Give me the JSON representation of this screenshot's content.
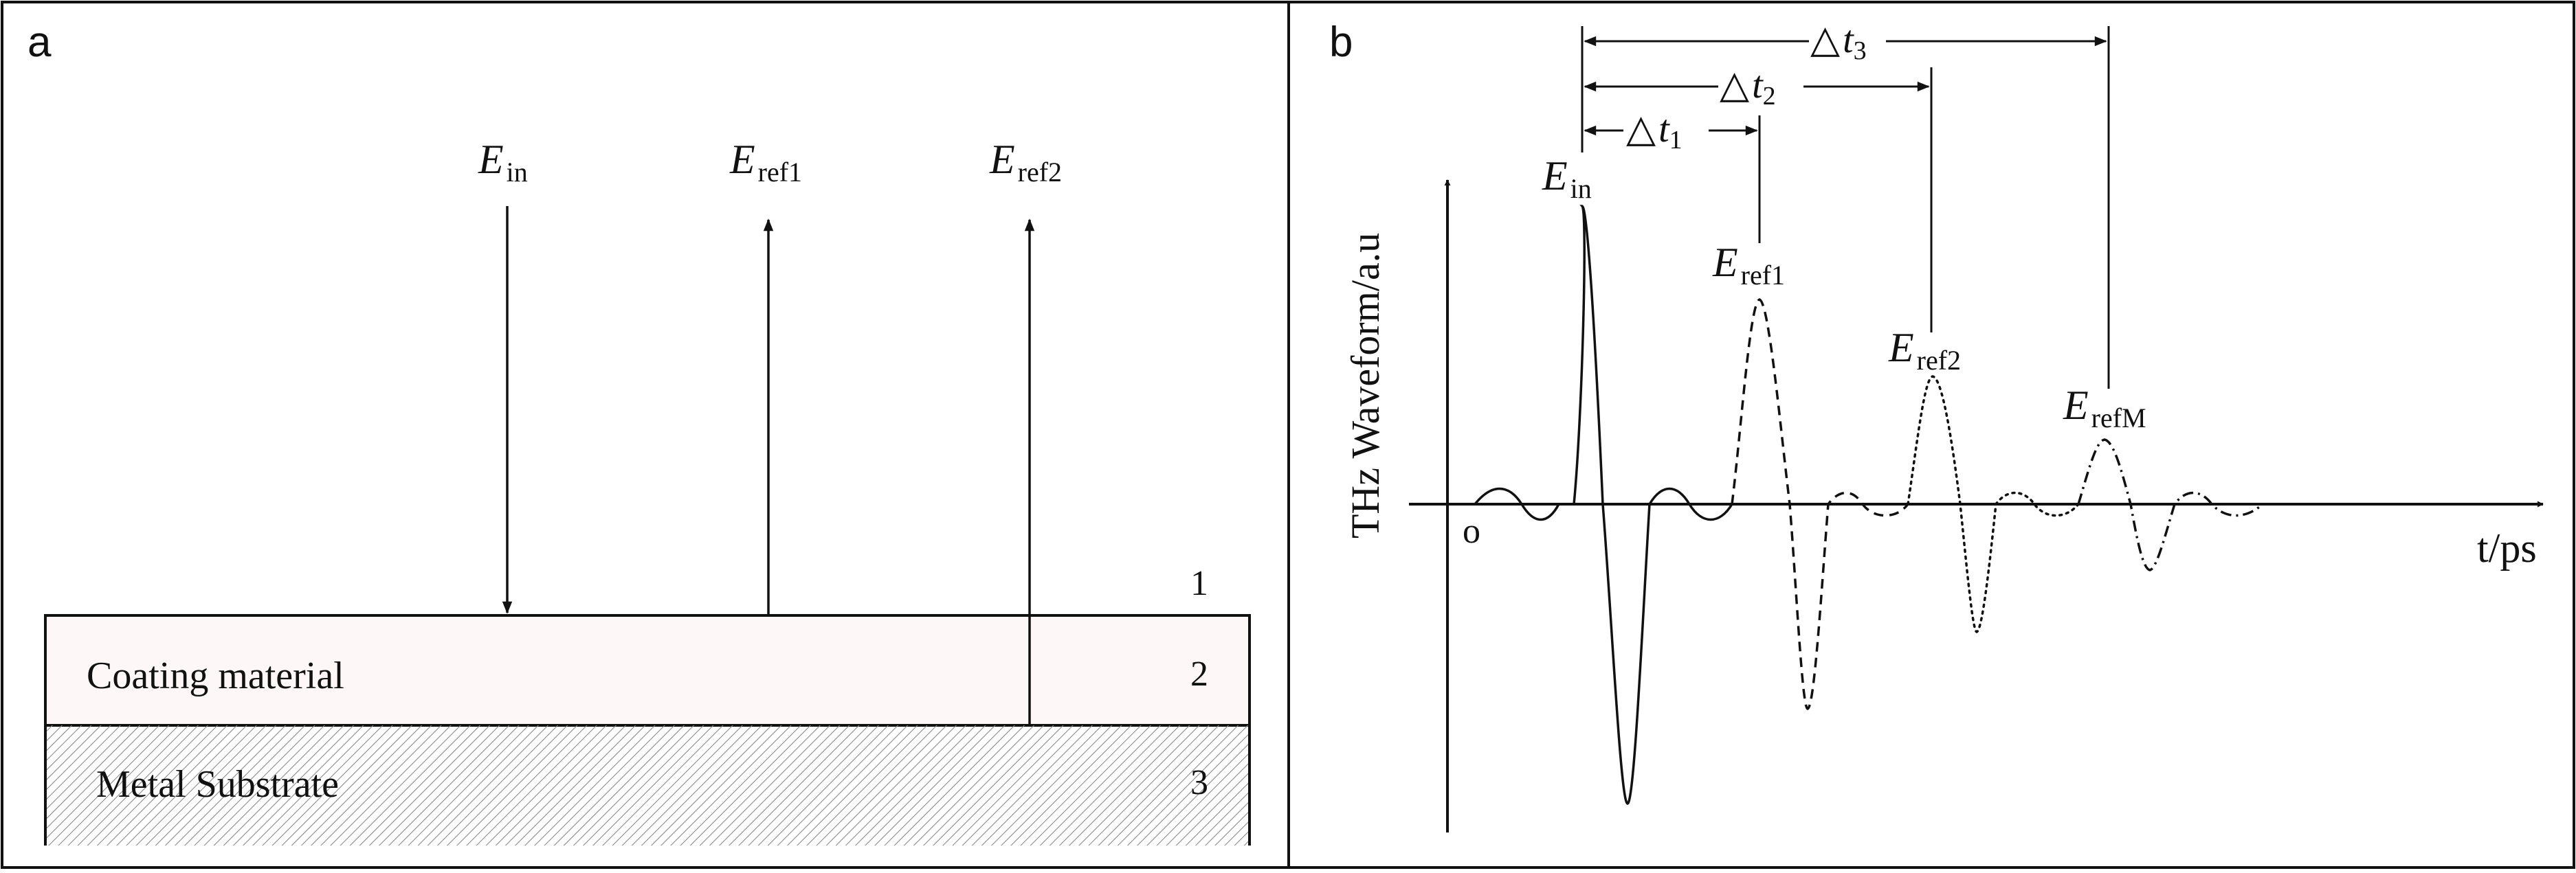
{
  "panel_a": {
    "letter": "a",
    "wave_labels": {
      "incident": {
        "base": "E",
        "sub": "in"
      },
      "reflected_1": {
        "base": "E",
        "sub": "ref1"
      },
      "reflected_2": {
        "base": "E",
        "sub": "ref2"
      }
    },
    "layers": {
      "air": {
        "number": "1"
      },
      "coating": {
        "label": "Coating material",
        "number": "2",
        "fill": "#fdf7f8"
      },
      "substrate": {
        "label": "Metal Substrate",
        "number": "3"
      }
    }
  },
  "panel_b": {
    "letter": "b",
    "y_axis_label": "THz Waveform/a.u",
    "x_axis_label": "t/ps",
    "origin_label": "o",
    "pulses": [
      {
        "base": "E",
        "sub": "in",
        "line_style": "solid"
      },
      {
        "base": "E",
        "sub": "ref1",
        "line_style": "dashed"
      },
      {
        "base": "E",
        "sub": "ref2",
        "line_style": "dotted"
      },
      {
        "base": "E",
        "sub": "refM",
        "line_style": "dash-dot"
      }
    ],
    "delays": [
      {
        "prefix": "△",
        "var": "t",
        "sub": "1"
      },
      {
        "prefix": "△",
        "var": "t",
        "sub": "2"
      },
      {
        "prefix": "△",
        "var": "t",
        "sub": "3"
      }
    ]
  },
  "colors": {
    "ink": "#111111",
    "coating_fill": "#fdf7f8",
    "hatch": "#8a8a8a"
  }
}
